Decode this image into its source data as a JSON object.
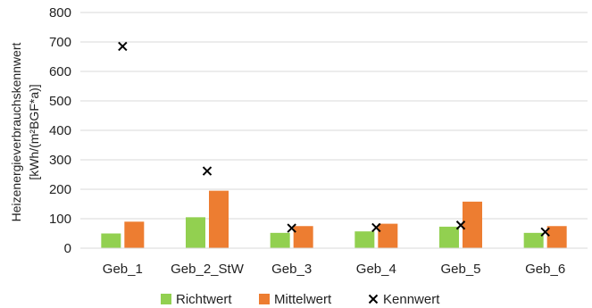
{
  "chart_data": {
    "type": "bar",
    "categories": [
      "Geb_1",
      "Geb_2_StW",
      "Geb_3",
      "Geb_4",
      "Geb_5",
      "Geb_6"
    ],
    "series": [
      {
        "name": "Richtwert",
        "kind": "bar",
        "color": "#92D050",
        "values": [
          50,
          105,
          52,
          57,
          73,
          52
        ]
      },
      {
        "name": "Mittelwert",
        "kind": "bar",
        "color": "#ED7D31",
        "values": [
          90,
          195,
          75,
          83,
          158,
          75
        ]
      },
      {
        "name": "Kennwert",
        "kind": "marker",
        "marker": "x",
        "color": "#000000",
        "values": [
          685,
          262,
          68,
          70,
          78,
          55
        ]
      }
    ],
    "ylabel_line1": "Heizenergieverbrauchskennwert",
    "ylabel_line2": "[kWh/(m²BGF*a)]",
    "ylim": [
      0,
      800
    ],
    "yticks": [
      0,
      100,
      200,
      300,
      400,
      500,
      600,
      700,
      800
    ],
    "grid": true,
    "legend_position": "bottom"
  }
}
